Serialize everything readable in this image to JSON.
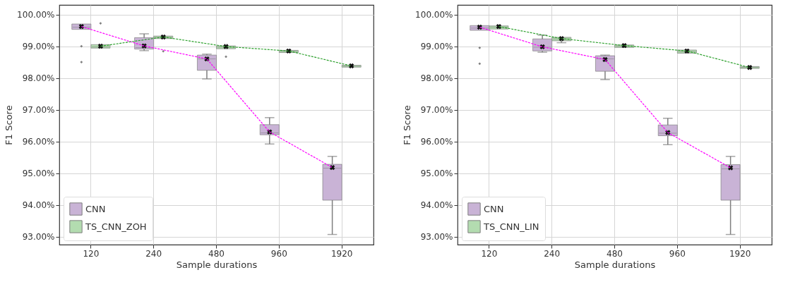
{
  "chart_data": [
    {
      "type": "box",
      "xlabel": "Sample durations",
      "ylabel": "F1 Score",
      "categories": [
        "120",
        "240",
        "480",
        "960",
        "1920"
      ],
      "ylim": [
        92.75,
        100.3
      ],
      "yticks": [
        {
          "value": 93,
          "label": "93.00%"
        },
        {
          "value": 94,
          "label": "94.00%"
        },
        {
          "value": 95,
          "label": "95.00%"
        },
        {
          "value": 96,
          "label": "96.00%"
        },
        {
          "value": 97,
          "label": "97.00%"
        },
        {
          "value": 98,
          "label": "98.00%"
        },
        {
          "value": 99,
          "label": "99.00%"
        },
        {
          "value": 100,
          "label": "100.00%"
        }
      ],
      "grid": true,
      "legend": "bottom left",
      "series": [
        {
          "name": "CNN",
          "color": "#c9b3d6",
          "boxes": [
            {
              "low": 99.53,
              "q1": 99.53,
              "median": 99.6,
              "q3": 99.7,
              "high": 99.7,
              "mean": 99.62,
              "outliers": [
                99.0,
                98.5
              ]
            },
            {
              "low": 98.86,
              "q1": 98.91,
              "median": 98.96,
              "q3": 99.27,
              "high": 99.39,
              "mean": 99.01
            },
            {
              "low": 97.97,
              "q1": 98.24,
              "median": 98.6,
              "q3": 98.72,
              "high": 98.75,
              "mean": 98.6
            },
            {
              "low": 95.92,
              "q1": 96.21,
              "median": 96.27,
              "q3": 96.53,
              "high": 96.75,
              "mean": 96.3
            },
            {
              "low": 93.07,
              "q1": 94.15,
              "median": 95.16,
              "q3": 95.28,
              "high": 95.53,
              "mean": 95.18
            }
          ]
        },
        {
          "name": "TS_CNN_ZOH",
          "color": "#b3dcb0",
          "boxes": [
            {
              "low": 98.94,
              "q1": 98.94,
              "median": 98.98,
              "q3": 99.05,
              "high": 99.05,
              "mean": 99.0,
              "outliers": [
                99.72
              ]
            },
            {
              "low": 99.24,
              "q1": 99.24,
              "median": 99.28,
              "q3": 99.32,
              "high": 99.32,
              "mean": 99.29,
              "outliers": [
                98.84
              ]
            },
            {
              "low": 98.92,
              "q1": 98.92,
              "median": 98.97,
              "q3": 99.01,
              "high": 99.01,
              "mean": 98.99,
              "outliers": [
                98.67
              ]
            },
            {
              "low": 98.8,
              "q1": 98.8,
              "median": 98.84,
              "q3": 98.87,
              "high": 98.87,
              "mean": 98.85
            },
            {
              "low": 98.34,
              "q1": 98.34,
              "median": 98.37,
              "q3": 98.4,
              "high": 98.4,
              "mean": 98.38
            }
          ]
        },
        {
          "type": "line",
          "color": "#ff00ff",
          "line_style": "dashed",
          "values": [
            99.62,
            99.01,
            98.6,
            96.3,
            95.18
          ]
        },
        {
          "type": "line",
          "color": "#2ca02c",
          "line_style": "dashed",
          "values": [
            99.0,
            99.29,
            98.99,
            98.85,
            98.38
          ]
        }
      ]
    },
    {
      "type": "box",
      "xlabel": "Sample durations",
      "ylabel": "F1 Score",
      "categories": [
        "120",
        "240",
        "480",
        "960",
        "1920"
      ],
      "ylim": [
        92.75,
        100.3
      ],
      "yticks": [
        {
          "value": 93,
          "label": "93.00%"
        },
        {
          "value": 94,
          "label": "94.00%"
        },
        {
          "value": 95,
          "label": "95.00%"
        },
        {
          "value": 96,
          "label": "96.00%"
        },
        {
          "value": 97,
          "label": "97.00%"
        },
        {
          "value": 98,
          "label": "98.00%"
        },
        {
          "value": 99,
          "label": "99.00%"
        },
        {
          "value": 100,
          "label": "100.00%"
        }
      ],
      "grid": true,
      "legend": "bottom left",
      "series": [
        {
          "name": "CNN",
          "color": "#c9b3d6",
          "boxes": [
            {
              "low": 99.5,
              "q1": 99.5,
              "median": 99.57,
              "q3": 99.65,
              "high": 99.65,
              "mean": 99.6,
              "outliers": [
                98.95,
                98.45
              ]
            },
            {
              "low": 98.81,
              "q1": 98.85,
              "median": 98.97,
              "q3": 99.23,
              "high": 99.35,
              "mean": 98.98
            },
            {
              "low": 97.95,
              "q1": 98.21,
              "median": 98.6,
              "q3": 98.7,
              "high": 98.72,
              "mean": 98.58
            },
            {
              "low": 95.9,
              "q1": 96.18,
              "median": 96.26,
              "q3": 96.52,
              "high": 96.73,
              "mean": 96.28
            },
            {
              "low": 93.07,
              "q1": 94.15,
              "median": 95.14,
              "q3": 95.27,
              "high": 95.53,
              "mean": 95.17
            }
          ]
        },
        {
          "name": "TS_CNN_LIN",
          "color": "#b3dcb0",
          "boxes": [
            {
              "low": 99.54,
              "q1": 99.54,
              "median": 99.6,
              "q3": 99.64,
              "high": 99.64,
              "mean": 99.62
            },
            {
              "low": 99.11,
              "q1": 99.17,
              "median": 99.23,
              "q3": 99.28,
              "high": 99.28,
              "mean": 99.24
            },
            {
              "low": 98.96,
              "q1": 98.96,
              "median": 99.0,
              "q3": 99.04,
              "high": 99.04,
              "mean": 99.02
            },
            {
              "low": 98.78,
              "q1": 98.78,
              "median": 98.83,
              "q3": 98.88,
              "high": 98.88,
              "mean": 98.85
            },
            {
              "low": 98.3,
              "q1": 98.3,
              "median": 98.33,
              "q3": 98.36,
              "high": 98.36,
              "mean": 98.33
            }
          ]
        },
        {
          "type": "line",
          "color": "#ff00ff",
          "line_style": "dashed",
          "values": [
            99.6,
            98.98,
            98.58,
            96.28,
            95.17
          ]
        },
        {
          "type": "line",
          "color": "#2ca02c",
          "line_style": "dashed",
          "values": [
            99.62,
            99.24,
            99.02,
            98.85,
            98.33
          ]
        }
      ]
    }
  ]
}
